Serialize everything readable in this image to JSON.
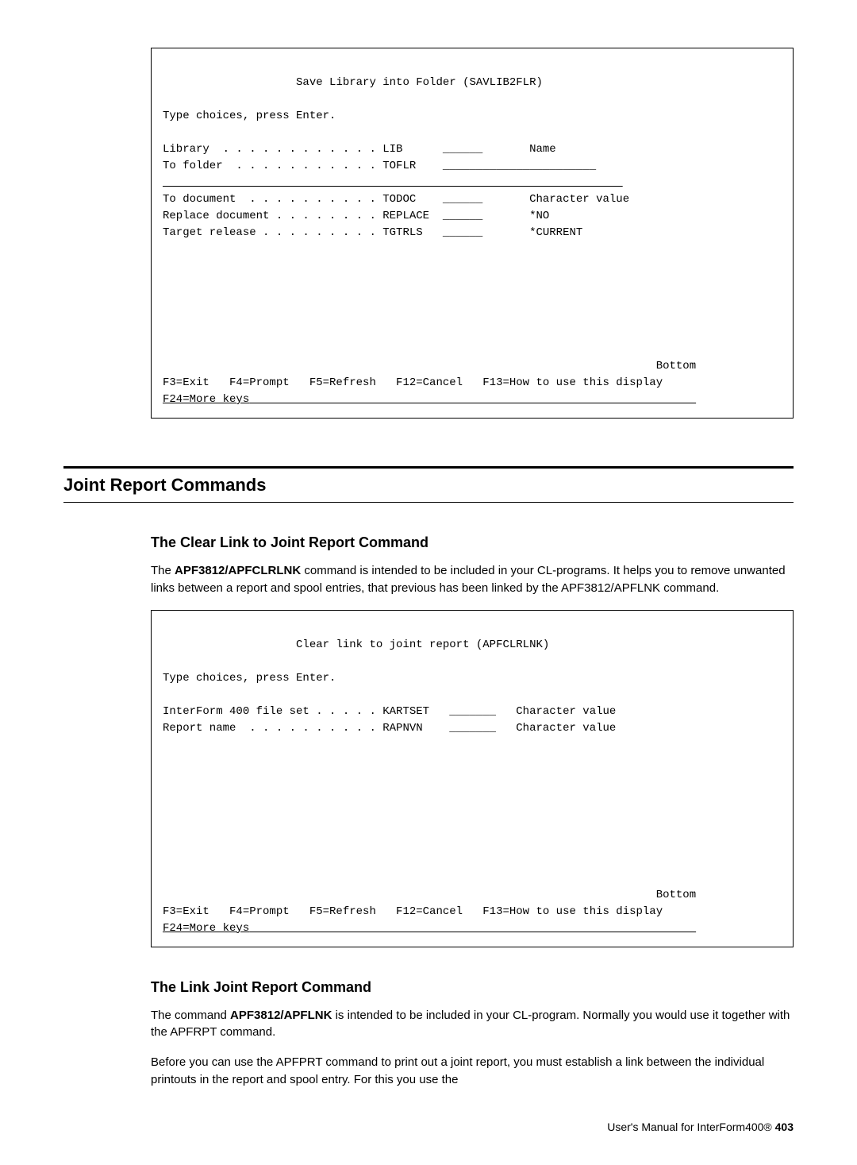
{
  "screen1": {
    "title": "Save Library into Folder (SAVLIB2FLR)",
    "prompt": "Type choices, press Enter.",
    "line_lib": "Library  . . . . . . . . . . . . LIB      ______       Name",
    "line_toflr": "To folder  . . . . . . . . . . . TOFLR    _______________________",
    "line_todoc": "To document  . . . . . . . . . . TODOC    ______       Character value",
    "line_replace": "Replace document . . . . . . . . REPLACE  ______       *NO",
    "line_tgtrls": "Target release . . . . . . . . . TGTRLS   ______       *CURRENT",
    "bottom": "Bottom",
    "fkeys1": "F3=Exit   F4=Prompt   F5=Refresh   F12=Cancel   F13=How to use this display",
    "fkeys2": "F24=More keys"
  },
  "section": {
    "heading": "Joint Report Commands"
  },
  "sub1": {
    "heading": "The Clear Link to Joint Report Command",
    "p1a": "The ",
    "p1b": "APF3812/APFCLRLNK",
    "p1c": " command is intended to be included in your CL-programs. It helps you to remove unwanted links between a report and spool entries, that previous has been linked by the APF3812/APFLNK command."
  },
  "screen2": {
    "title": "Clear link to joint report (APFCLRLNK)",
    "prompt": "Type choices, press Enter.",
    "line_kartset": "InterForm 400 file set . . . . . KARTSET   _______   Character value",
    "line_rapnvn": "Report name  . . . . . . . . . . RAPNVN    _______   Character value",
    "bottom": "Bottom",
    "fkeys1": "F3=Exit   F4=Prompt   F5=Refresh   F12=Cancel   F13=How to use this display",
    "fkeys2": "F24=More keys"
  },
  "sub2": {
    "heading": "The Link Joint Report Command",
    "p1a": "The command ",
    "p1b": "APF3812/APFLNK",
    "p1c": " is intended to be included in your CL-program. Normally you would use it together with the APFRPT command.",
    "p2": "Before you can use the APFPRT command to print out a joint report, you must establish a link between the individual printouts in the report and spool entry. For this you use the"
  },
  "footer": {
    "text": "User's Manual for InterForm400®   ",
    "page": "403"
  }
}
